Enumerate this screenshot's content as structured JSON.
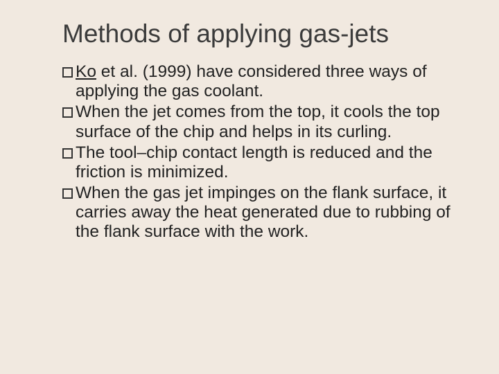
{
  "background_color": "#f1e9e0",
  "title": {
    "text": "Methods of applying gas-jets",
    "fontsize": 37,
    "color": "#3b3b3b"
  },
  "bullets": [
    {
      "prefix": "Ko",
      "prefix_underline": true,
      "rest": " et al. (1999) have considered three ways of applying the gas coolant."
    },
    {
      "prefix": "When",
      "prefix_underline": false,
      "rest": " the jet comes from the top, it cools the top surface of the chip and helps in its curling."
    },
    {
      "prefix": "The",
      "prefix_underline": false,
      "rest": " tool–chip contact length is reduced and the friction is minimized."
    },
    {
      "prefix": "When",
      "prefix_underline": false,
      "rest": " the gas jet impinges on the flank surface, it carries away the heat generated due to rubbing of the flank surface with the work."
    }
  ],
  "body_fontsize": 24.5,
  "body_color": "#222",
  "bullet_box": {
    "size": 15,
    "border_color": "#333",
    "border_width": 2
  }
}
